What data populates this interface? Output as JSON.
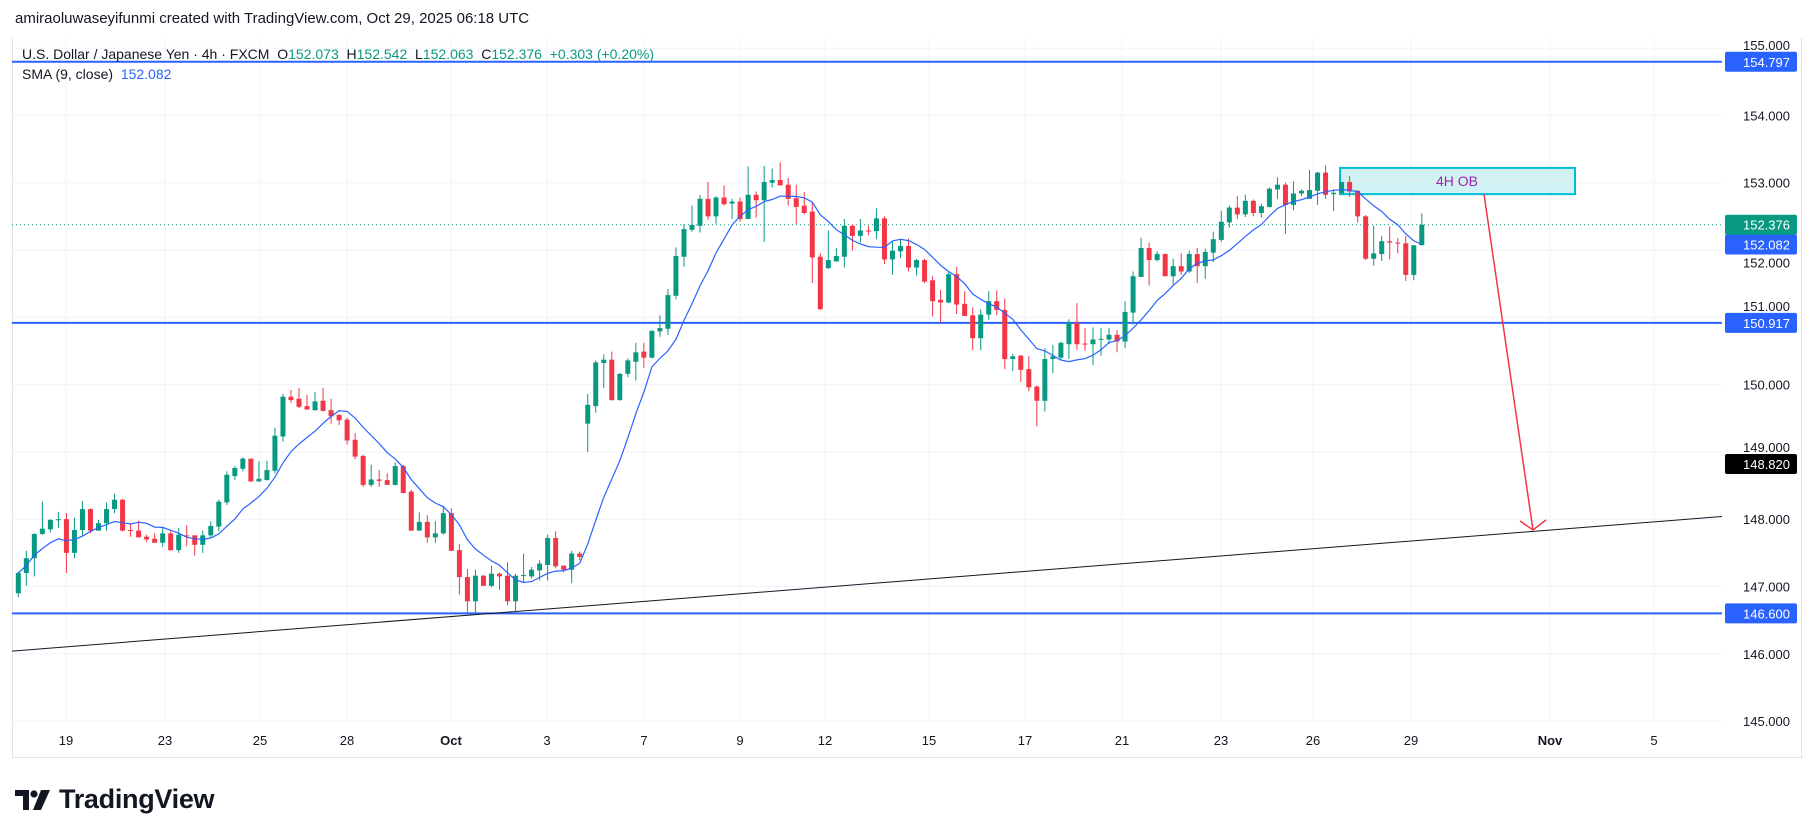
{
  "credit": "amiraoluwaseyifunmi created with TradingView.com, Oct 29, 2025 06:18 UTC",
  "legend": {
    "symbol": "U.S. Dollar / Japanese Yen · 4h · FXCM",
    "o_label": "O",
    "o": "152.073",
    "h_label": "H",
    "h": "152.542",
    "l_label": "L",
    "l": "152.063",
    "c_label": "C",
    "c": "152.376",
    "change": "+0.303 (+0.20%)",
    "sma_label": "SMA (9, close)",
    "sma_value": "152.082"
  },
  "logo_text": "TradingView",
  "colors": {
    "up": "#089981",
    "down": "#f23645",
    "sma": "#2962ff",
    "level": "#2962ff",
    "trendline": "#131722",
    "arrow": "#f23645",
    "ob_fill": "#d1f2f5",
    "ob_border": "#00bcd4",
    "ob_text": "#9c27b0"
  },
  "chart_data": {
    "type": "candlestick",
    "title": "U.S. Dollar / Japanese Yen · 4h · FXCM",
    "ylim": [
      145,
      155
    ],
    "y_ticks": [
      "155.000",
      "154.000",
      "153.000",
      "152.000",
      "151.000",
      "150.000",
      "149.000",
      "148.000",
      "147.000",
      "146.000",
      "145.000"
    ],
    "x_tick_labels": [
      "19",
      "23",
      "25",
      "28",
      "Oct",
      "3",
      "7",
      "9",
      "12",
      "15",
      "17",
      "21",
      "23",
      "26",
      "29",
      "Nov",
      "5"
    ],
    "grid": true,
    "candles_ohlc": [
      [
        146.9,
        147.22,
        146.84,
        147.2
      ],
      [
        147.2,
        147.53,
        147.01,
        147.42
      ],
      [
        147.42,
        147.79,
        147.15,
        147.78
      ],
      [
        147.78,
        148.26,
        147.77,
        147.86
      ],
      [
        147.85,
        148.0,
        147.8,
        147.99
      ],
      [
        147.99,
        148.11,
        147.87,
        148.0
      ],
      [
        148.0,
        148.09,
        147.2,
        147.5
      ],
      [
        147.5,
        148.02,
        147.42,
        147.84
      ],
      [
        147.84,
        148.27,
        147.74,
        148.15
      ],
      [
        148.15,
        148.16,
        147.79,
        147.83
      ],
      [
        147.83,
        147.99,
        147.83,
        147.94
      ],
      [
        147.94,
        148.25,
        147.83,
        148.15
      ],
      [
        148.15,
        148.38,
        148.09,
        148.29
      ],
      [
        148.29,
        148.3,
        147.82,
        147.83
      ],
      [
        147.84,
        147.94,
        147.74,
        147.83
      ],
      [
        147.83,
        147.98,
        147.73,
        147.73
      ],
      [
        147.74,
        147.77,
        147.66,
        147.7
      ],
      [
        147.71,
        147.79,
        147.65,
        147.65
      ],
      [
        147.65,
        147.87,
        147.59,
        147.79
      ],
      [
        147.79,
        147.82,
        147.53,
        147.54
      ],
      [
        147.54,
        147.87,
        147.5,
        147.77
      ],
      [
        147.76,
        147.91,
        147.6,
        147.75
      ],
      [
        147.76,
        147.76,
        147.46,
        147.62
      ],
      [
        147.62,
        147.83,
        147.5,
        147.76
      ],
      [
        147.76,
        147.97,
        147.73,
        147.9
      ],
      [
        147.89,
        148.29,
        147.82,
        148.26
      ],
      [
        148.25,
        148.71,
        148.21,
        148.66
      ],
      [
        148.64,
        148.79,
        148.58,
        148.76
      ],
      [
        148.75,
        148.92,
        148.71,
        148.9
      ],
      [
        148.9,
        148.9,
        148.56,
        148.56
      ],
      [
        148.56,
        148.86,
        148.56,
        148.6
      ],
      [
        148.58,
        148.87,
        148.58,
        148.73
      ],
      [
        148.72,
        149.36,
        148.68,
        149.24
      ],
      [
        149.23,
        149.86,
        149.15,
        149.82
      ],
      [
        149.82,
        149.92,
        149.73,
        149.77
      ],
      [
        149.79,
        149.95,
        149.65,
        149.67
      ],
      [
        149.68,
        149.85,
        149.63,
        149.63
      ],
      [
        149.62,
        149.89,
        149.61,
        149.75
      ],
      [
        149.76,
        149.95,
        149.6,
        149.61
      ],
      [
        149.62,
        149.79,
        149.42,
        149.53
      ],
      [
        149.55,
        149.56,
        149.4,
        149.47
      ],
      [
        149.48,
        149.51,
        149.11,
        149.17
      ],
      [
        149.18,
        149.28,
        148.89,
        148.93
      ],
      [
        148.94,
        148.96,
        148.48,
        148.51
      ],
      [
        148.51,
        148.81,
        148.48,
        148.59
      ],
      [
        148.59,
        148.73,
        148.48,
        148.57
      ],
      [
        148.58,
        148.68,
        148.51,
        148.51
      ],
      [
        148.51,
        148.84,
        148.5,
        148.79
      ],
      [
        148.79,
        148.81,
        148.38,
        148.39
      ],
      [
        148.41,
        148.44,
        147.83,
        147.83
      ],
      [
        147.83,
        148.1,
        147.83,
        147.96
      ],
      [
        147.96,
        148.06,
        147.65,
        147.73
      ],
      [
        147.73,
        147.97,
        147.65,
        147.79
      ],
      [
        147.79,
        148.2,
        147.77,
        148.09
      ],
      [
        148.09,
        148.16,
        147.53,
        147.53
      ],
      [
        147.54,
        147.63,
        146.88,
        147.14
      ],
      [
        147.14,
        147.26,
        146.6,
        146.78
      ],
      [
        146.78,
        147.25,
        146.6,
        147.16
      ],
      [
        147.16,
        147.17,
        147.01,
        147.01
      ],
      [
        147.01,
        147.31,
        146.99,
        147.19
      ],
      [
        147.19,
        147.21,
        146.95,
        147.15
      ],
      [
        147.16,
        147.36,
        146.72,
        146.78
      ],
      [
        146.78,
        147.19,
        146.6,
        147.16
      ],
      [
        147.16,
        147.49,
        147.05,
        147.17
      ],
      [
        147.15,
        147.29,
        147.12,
        147.25
      ],
      [
        147.24,
        147.39,
        147.09,
        147.34
      ],
      [
        147.32,
        147.77,
        147.09,
        147.72
      ],
      [
        147.72,
        147.82,
        147.27,
        147.3
      ],
      [
        147.31,
        147.31,
        147.21,
        147.25
      ],
      [
        147.25,
        147.53,
        147.05,
        147.49
      ],
      [
        147.49,
        147.52,
        147.39,
        147.44
      ],
      [
        149.42,
        149.86,
        149.0,
        149.7
      ],
      [
        149.68,
        150.36,
        149.58,
        150.33
      ],
      [
        150.32,
        150.45,
        149.95,
        150.37
      ],
      [
        150.37,
        150.49,
        149.76,
        149.77
      ],
      [
        149.77,
        150.17,
        149.76,
        150.16
      ],
      [
        150.16,
        150.39,
        150.11,
        150.36
      ],
      [
        150.34,
        150.62,
        150.06,
        150.48
      ],
      [
        150.49,
        150.62,
        150.25,
        150.4
      ],
      [
        150.4,
        150.8,
        150.39,
        150.8
      ],
      [
        150.79,
        151.03,
        150.71,
        150.84
      ],
      [
        150.83,
        151.42,
        150.74,
        151.33
      ],
      [
        151.32,
        152.04,
        151.27,
        151.91
      ],
      [
        151.9,
        152.38,
        151.75,
        152.31
      ],
      [
        152.3,
        152.66,
        152.27,
        152.37
      ],
      [
        152.36,
        152.82,
        152.26,
        152.76
      ],
      [
        152.76,
        153.01,
        152.45,
        152.5
      ],
      [
        152.5,
        152.8,
        152.39,
        152.78
      ],
      [
        152.78,
        152.96,
        152.66,
        152.68
      ],
      [
        152.69,
        152.76,
        152.46,
        152.72
      ],
      [
        152.72,
        152.78,
        152.42,
        152.46
      ],
      [
        152.46,
        153.24,
        152.46,
        152.82
      ],
      [
        152.82,
        152.87,
        152.48,
        152.74
      ],
      [
        152.74,
        153.25,
        152.12,
        153.01
      ],
      [
        153.0,
        153.21,
        152.93,
        153.04
      ],
      [
        153.04,
        153.3,
        152.96,
        152.96
      ],
      [
        152.97,
        153.07,
        152.66,
        152.76
      ],
      [
        152.77,
        152.97,
        152.39,
        152.64
      ],
      [
        152.66,
        152.86,
        152.53,
        152.55
      ],
      [
        152.57,
        152.72,
        151.51,
        151.89
      ],
      [
        151.9,
        151.95,
        151.11,
        151.12
      ],
      [
        151.73,
        152.29,
        151.72,
        151.85
      ],
      [
        151.83,
        152.03,
        151.83,
        151.91
      ],
      [
        151.9,
        152.46,
        151.74,
        152.36
      ],
      [
        152.36,
        152.38,
        151.99,
        152.21
      ],
      [
        152.21,
        152.46,
        152.11,
        152.29
      ],
      [
        152.29,
        152.36,
        152.22,
        152.28
      ],
      [
        152.28,
        152.62,
        152.16,
        152.47
      ],
      [
        152.47,
        152.5,
        151.79,
        151.86
      ],
      [
        151.86,
        152.12,
        151.63,
        151.99
      ],
      [
        151.98,
        152.16,
        151.88,
        152.06
      ],
      [
        152.06,
        152.17,
        151.68,
        151.74
      ],
      [
        151.74,
        151.87,
        151.62,
        151.85
      ],
      [
        151.85,
        151.87,
        151.51,
        151.53
      ],
      [
        151.55,
        151.61,
        151.01,
        151.24
      ],
      [
        151.26,
        151.41,
        150.92,
        151.22
      ],
      [
        151.22,
        151.67,
        151.21,
        151.64
      ],
      [
        151.64,
        151.75,
        151.05,
        151.19
      ],
      [
        151.2,
        151.39,
        151.02,
        151.02
      ],
      [
        151.03,
        151.15,
        150.51,
        150.69
      ],
      [
        150.69,
        151.12,
        150.51,
        151.04
      ],
      [
        151.04,
        151.39,
        150.96,
        151.24
      ],
      [
        151.24,
        151.4,
        151.03,
        151.11
      ],
      [
        151.11,
        151.28,
        150.23,
        150.38
      ],
      [
        150.38,
        150.46,
        150.2,
        150.42
      ],
      [
        150.43,
        150.44,
        150.04,
        150.22
      ],
      [
        150.23,
        150.42,
        149.9,
        149.96
      ],
      [
        149.97,
        149.99,
        149.38,
        149.76
      ],
      [
        149.76,
        150.54,
        149.6,
        150.38
      ],
      [
        150.38,
        150.59,
        150.17,
        150.42
      ],
      [
        150.4,
        150.64,
        150.36,
        150.62
      ],
      [
        150.6,
        150.97,
        150.38,
        150.92
      ],
      [
        150.92,
        151.21,
        150.52,
        150.6
      ],
      [
        150.61,
        150.84,
        150.5,
        150.6
      ],
      [
        150.6,
        150.85,
        150.29,
        150.67
      ],
      [
        150.67,
        150.84,
        150.43,
        150.68
      ],
      [
        150.67,
        150.84,
        150.6,
        150.74
      ],
      [
        150.74,
        150.81,
        150.48,
        150.64
      ],
      [
        150.64,
        151.24,
        150.54,
        151.08
      ],
      [
        151.07,
        151.68,
        150.89,
        151.61
      ],
      [
        151.6,
        152.18,
        151.6,
        152.03
      ],
      [
        152.03,
        152.11,
        151.47,
        151.85
      ],
      [
        151.85,
        151.98,
        151.83,
        151.94
      ],
      [
        151.94,
        151.95,
        151.61,
        151.61
      ],
      [
        151.61,
        151.87,
        151.49,
        151.76
      ],
      [
        151.76,
        151.95,
        151.63,
        151.68
      ],
      [
        151.68,
        151.99,
        151.66,
        151.94
      ],
      [
        151.94,
        152.03,
        151.51,
        151.76
      ],
      [
        151.76,
        152.02,
        151.57,
        151.97
      ],
      [
        151.96,
        152.27,
        151.82,
        152.16
      ],
      [
        152.15,
        152.58,
        152.12,
        152.42
      ],
      [
        152.41,
        152.66,
        152.33,
        152.63
      ],
      [
        152.63,
        152.8,
        152.46,
        152.53
      ],
      [
        152.53,
        152.82,
        152.49,
        152.73
      ],
      [
        152.73,
        152.75,
        152.5,
        152.55
      ],
      [
        152.55,
        152.69,
        152.48,
        152.65
      ],
      [
        152.64,
        152.93,
        152.63,
        152.91
      ],
      [
        152.9,
        153.08,
        152.76,
        152.97
      ],
      [
        152.97,
        153.0,
        152.24,
        152.67
      ],
      [
        152.67,
        153.02,
        152.59,
        152.84
      ],
      [
        152.84,
        152.9,
        152.8,
        152.88
      ],
      [
        152.76,
        153.19,
        152.76,
        152.89
      ],
      [
        152.88,
        153.16,
        152.67,
        153.15
      ],
      [
        153.15,
        153.26,
        152.76,
        152.82
      ],
      [
        152.83,
        152.9,
        152.58,
        152.85
      ],
      [
        152.84,
        153.01,
        152.84,
        153.01
      ],
      [
        153.01,
        153.1,
        152.79,
        152.87
      ],
      [
        152.88,
        152.89,
        152.41,
        152.5
      ],
      [
        152.5,
        152.52,
        151.85,
        151.87
      ],
      [
        151.87,
        152.36,
        151.77,
        151.95
      ],
      [
        151.94,
        152.21,
        151.84,
        152.13
      ],
      [
        152.13,
        152.35,
        151.86,
        152.11
      ],
      [
        152.11,
        152.18,
        151.95,
        152.1
      ],
      [
        152.1,
        152.21,
        151.54,
        151.63
      ],
      [
        151.63,
        152.07,
        151.55,
        152.07
      ],
      [
        152.073,
        152.542,
        152.063,
        152.376
      ]
    ],
    "sma_period": 9,
    "horizontal_levels": [
      {
        "price": 154.797,
        "label": "154.797"
      },
      {
        "price": 150.917,
        "label": "150.917"
      },
      {
        "price": 146.6,
        "label": "146.600"
      }
    ],
    "last_price": {
      "price": 152.376,
      "label": "152.376"
    },
    "sma_last": {
      "price": 152.082,
      "label": "152.082"
    },
    "crosshair_label": {
      "price": 148.82,
      "label": "148.820"
    },
    "trendline": {
      "start_price": 146.04,
      "end_price": 148.04
    },
    "order_block": {
      "label": "4H OB",
      "top": 153.22,
      "bottom": 152.83
    },
    "arrow": {
      "from_price": 152.83,
      "to_price": 147.84
    }
  }
}
